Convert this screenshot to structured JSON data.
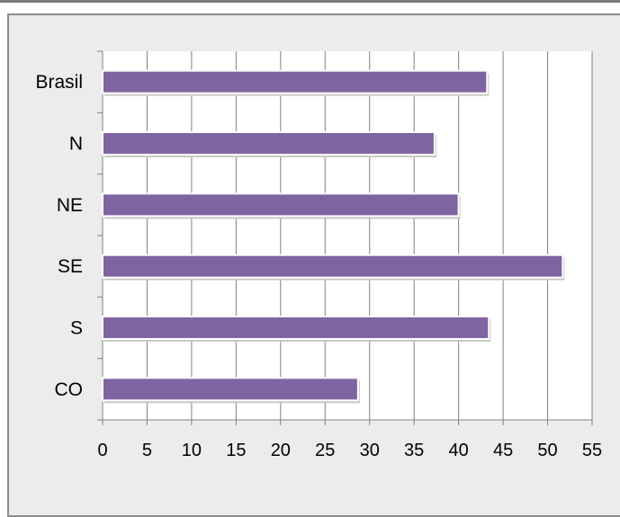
{
  "chart_data": {
    "type": "bar",
    "orientation": "horizontal",
    "categories": [
      "Brasil",
      "N",
      "NE",
      "SE",
      "S",
      "CO"
    ],
    "values": [
      43.2,
      37.3,
      40.0,
      51.7,
      43.4,
      28.7
    ],
    "xlim": [
      0,
      55
    ],
    "xticks": [
      "0",
      "5",
      "10",
      "15",
      "20",
      "25",
      "30",
      "35",
      "40",
      "45",
      "50",
      "55"
    ],
    "grid": true,
    "legend": "none",
    "colors": {
      "bar": "#8064a2",
      "bar_edge": "#ffffff",
      "plot_background": "#ffffff",
      "chart_background": "#ececec",
      "gridline": "#808080"
    }
  }
}
